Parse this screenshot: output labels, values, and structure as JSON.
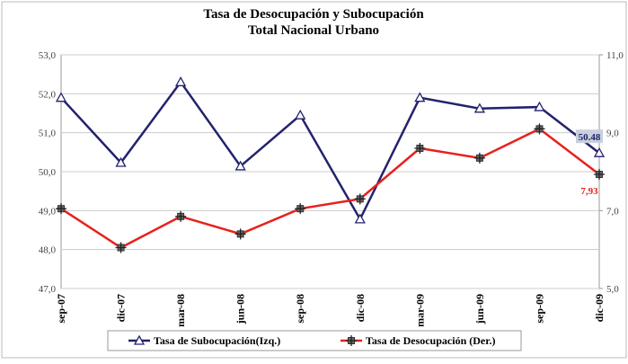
{
  "chart_data": {
    "type": "line",
    "title": "Tasa de Desocupación y Subocupación",
    "subtitle": "Total Nacional Urbano",
    "categories": [
      "sep-07",
      "dic-07",
      "mar-08",
      "jun-08",
      "sep-08",
      "dic-08",
      "mar-09",
      "jun-09",
      "sep-09",
      "dic-09"
    ],
    "series": [
      {
        "name": "Tasa de Subocupación(Izq.)",
        "color": "#22226e",
        "marker": "triangle",
        "values": [
          51.9,
          50.23,
          52.3,
          50.14,
          51.45,
          48.78,
          51.9,
          51.62,
          51.66,
          50.48
        ],
        "value_labels": [
          null,
          null,
          null,
          null,
          null,
          null,
          null,
          null,
          null,
          "50.48"
        ]
      },
      {
        "name": "Tasa de Desocupación (Der.)",
        "color": "#e8201c",
        "marker": "plus",
        "axis": "y2",
        "values": [
          7.05,
          6.05,
          6.85,
          6.4,
          7.05,
          7.3,
          8.6,
          8.35,
          9.1,
          7.93
        ],
        "value_labels": [
          null,
          null,
          null,
          null,
          null,
          null,
          null,
          null,
          null,
          "7,93"
        ]
      }
    ],
    "ylim": [
      47,
      53
    ],
    "yticks": [
      {
        "value": 47,
        "label": "47,0"
      },
      {
        "value": 48,
        "label": "48,0"
      },
      {
        "value": 49,
        "label": "49,0"
      },
      {
        "value": 50,
        "label": "50,0"
      },
      {
        "value": 51,
        "label": "51,0"
      },
      {
        "value": 52,
        "label": "52,0"
      },
      {
        "value": 53,
        "label": "53,0"
      }
    ],
    "y2lim": [
      5,
      11
    ],
    "y2ticks": [
      {
        "value": 5,
        "label": "5,0"
      },
      {
        "value": 7,
        "label": "7,0"
      },
      {
        "value": 9,
        "label": "9,0"
      },
      {
        "value": 11,
        "label": "11,0"
      }
    ],
    "grid": true,
    "legend": "bottom"
  }
}
